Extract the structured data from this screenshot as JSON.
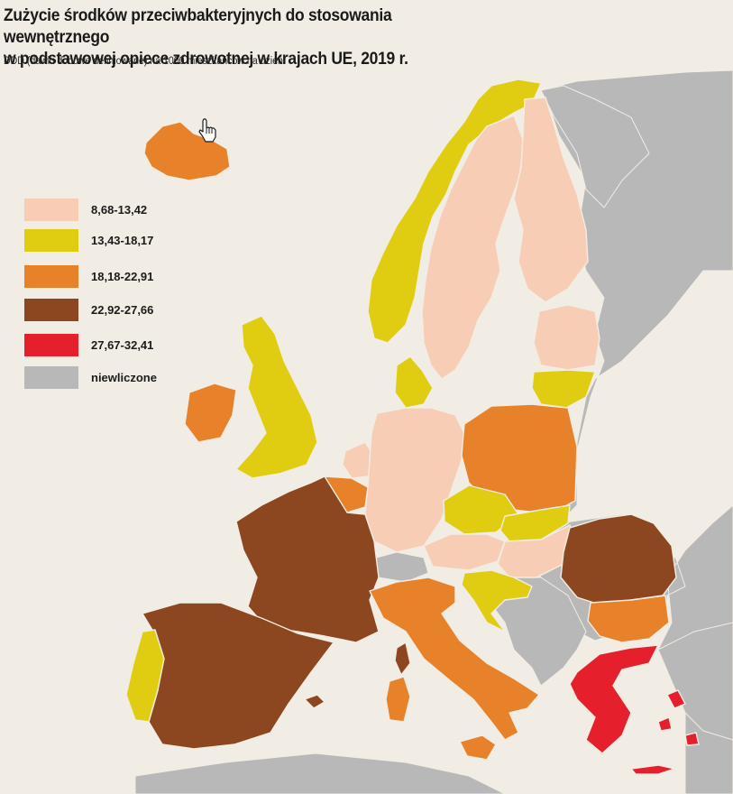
{
  "title_line1": "Zużycie środków przeciwbakteryjnych do stosowania wewnętrznego",
  "title_line2": "w podstawowej opiece zdrowotnej w krajach UE, 2019 r.",
  "subtitle": "DDD (dawki dobowe definiowane) na 1000 mieszkańców na dzień",
  "colors": {
    "sea": "#f2ede4",
    "c1": "#f8cdb6",
    "c2": "#e0cd12",
    "c3": "#e8822a",
    "c4": "#8d4720",
    "c5": "#e51f2c",
    "none": "#b8b8b8"
  },
  "legend": [
    {
      "label": "8,68-13,42",
      "color": "#f8cdb6"
    },
    {
      "label": "13,43-18,17",
      "color": "#e0cd12"
    },
    {
      "label": "18,18-22,91",
      "color": "#e8822a"
    },
    {
      "label": "22,92-27,66",
      "color": "#8d4720"
    },
    {
      "label": "27,67-32,41",
      "color": "#e51f2c"
    },
    {
      "label": "niewliczone",
      "color": "#b8b8b8"
    }
  ],
  "cursor_icon": "hand-pointer-icon"
}
